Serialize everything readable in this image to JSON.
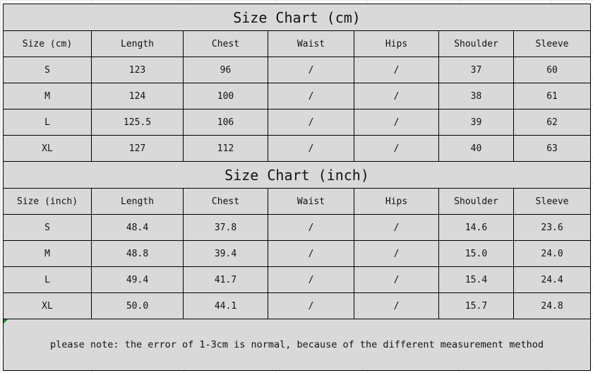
{
  "cm": {
    "title": "Size Chart (cm)",
    "headers": [
      "Size (cm)",
      "Length",
      "Chest",
      "Waist",
      "Hips",
      "Shoulder",
      "Sleeve"
    ],
    "rows": [
      [
        "S",
        "123",
        "96",
        "/",
        "/",
        "37",
        "60"
      ],
      [
        "M",
        "124",
        "100",
        "/",
        "/",
        "38",
        "61"
      ],
      [
        "L",
        "125.5",
        "106",
        "/",
        "/",
        "39",
        "62"
      ],
      [
        "XL",
        "127",
        "112",
        "/",
        "/",
        "40",
        "63"
      ]
    ]
  },
  "inch": {
    "title": "Size Chart (inch)",
    "headers": [
      "Size (inch)",
      "Length",
      "Chest",
      "Waist",
      "Hips",
      "Shoulder",
      "Sleeve"
    ],
    "rows": [
      [
        "S",
        "48.4",
        "37.8",
        "/",
        "/",
        "14.6",
        "23.6"
      ],
      [
        "M",
        "48.8",
        "39.4",
        "/",
        "/",
        "15.0",
        "24.0"
      ],
      [
        "L",
        "49.4",
        "41.7",
        "/",
        "/",
        "15.4",
        "24.4"
      ],
      [
        "XL",
        "50.0",
        "44.1",
        "/",
        "/",
        "15.7",
        "24.8"
      ]
    ]
  },
  "note": "please note: the error of 1-3cm is normal, because of the different measurement method",
  "colors": {
    "cell_bg": "#d9d9d9",
    "border": "#000000"
  }
}
